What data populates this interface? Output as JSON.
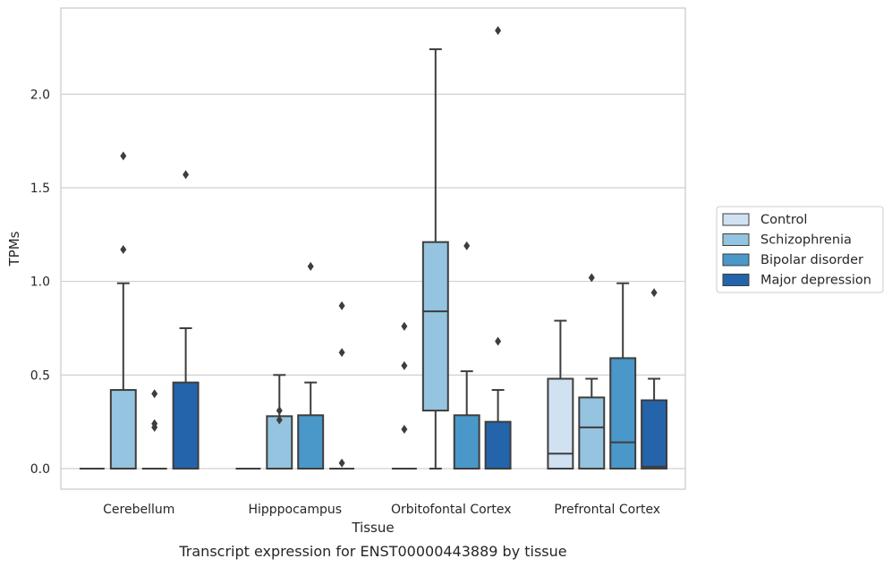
{
  "chart_data": {
    "type": "box",
    "xlabel": "Tissue",
    "ylabel": "TPMs",
    "caption": "Transcript expression for ENST00000443889 by tissue",
    "ylim": [
      -0.11,
      2.46
    ],
    "yticks": [
      "0.0",
      "0.5",
      "1.0",
      "1.5",
      "2.0"
    ],
    "grid": "horizontal",
    "legend_position": "right",
    "categories": [
      "Cerebellum",
      "Hipppocampus",
      "Orbitofontal Cortex",
      "Prefrontal Cortex"
    ],
    "series": [
      {
        "name": "Control",
        "color": "#d0e1f2"
      },
      {
        "name": "Schizophrenia",
        "color": "#94c4df"
      },
      {
        "name": "Bipolar disorder",
        "color": "#4a98c9"
      },
      {
        "name": "Major depression",
        "color": "#2464ab"
      }
    ],
    "boxes": [
      [
        {
          "q1": 0,
          "median": 0,
          "q3": 0,
          "whisker_low": 0,
          "whisker_high": 0,
          "outliers": []
        },
        {
          "q1": 0,
          "median": 0,
          "q3": 0.42,
          "whisker_low": 0,
          "whisker_high": 0.99,
          "outliers": [
            1.17,
            1.67
          ]
        },
        {
          "q1": 0,
          "median": 0,
          "q3": 0,
          "whisker_low": 0,
          "whisker_high": 0,
          "outliers": [
            0.22,
            0.24,
            0.4
          ]
        },
        {
          "q1": 0,
          "median": 0,
          "q3": 0.46,
          "whisker_low": 0,
          "whisker_high": 0.75,
          "outliers": [
            1.57
          ]
        }
      ],
      [
        {
          "q1": 0,
          "median": 0,
          "q3": 0,
          "whisker_low": 0,
          "whisker_high": 0,
          "outliers": []
        },
        {
          "q1": 0,
          "median": 0,
          "q3": 0.28,
          "whisker_low": 0,
          "whisker_high": 0.5,
          "outliers": [
            0.26,
            0.31
          ]
        },
        {
          "q1": 0,
          "median": 0,
          "q3": 0.285,
          "whisker_low": 0,
          "whisker_high": 0.46,
          "outliers": [
            1.08
          ]
        },
        {
          "q1": 0,
          "median": 0,
          "q3": 0,
          "whisker_low": 0,
          "whisker_high": 0,
          "outliers": [
            0.03,
            0.62,
            0.87
          ]
        }
      ],
      [
        {
          "q1": 0,
          "median": 0,
          "q3": 0,
          "whisker_low": 0,
          "whisker_high": 0,
          "outliers": [
            0.21,
            0.55,
            0.76
          ]
        },
        {
          "q1": 0.31,
          "median": 0.84,
          "q3": 1.21,
          "whisker_low": 0,
          "whisker_high": 2.24,
          "outliers": []
        },
        {
          "q1": 0,
          "median": 0,
          "q3": 0.285,
          "whisker_low": 0,
          "whisker_high": 0.52,
          "outliers": [
            1.19
          ]
        },
        {
          "q1": 0,
          "median": 0,
          "q3": 0.25,
          "whisker_low": 0,
          "whisker_high": 0.42,
          "outliers": [
            0.68,
            2.34
          ]
        }
      ],
      [
        {
          "q1": 0,
          "median": 0.08,
          "q3": 0.48,
          "whisker_low": 0,
          "whisker_high": 0.79,
          "outliers": []
        },
        {
          "q1": 0,
          "median": 0.22,
          "q3": 0.38,
          "whisker_low": 0,
          "whisker_high": 0.48,
          "outliers": [
            1.02
          ]
        },
        {
          "q1": 0,
          "median": 0.14,
          "q3": 0.59,
          "whisker_low": 0,
          "whisker_high": 0.99,
          "outliers": []
        },
        {
          "q1": 0,
          "median": 0.01,
          "q3": 0.365,
          "whisker_low": 0,
          "whisker_high": 0.48,
          "outliers": [
            0.94
          ]
        }
      ]
    ]
  }
}
